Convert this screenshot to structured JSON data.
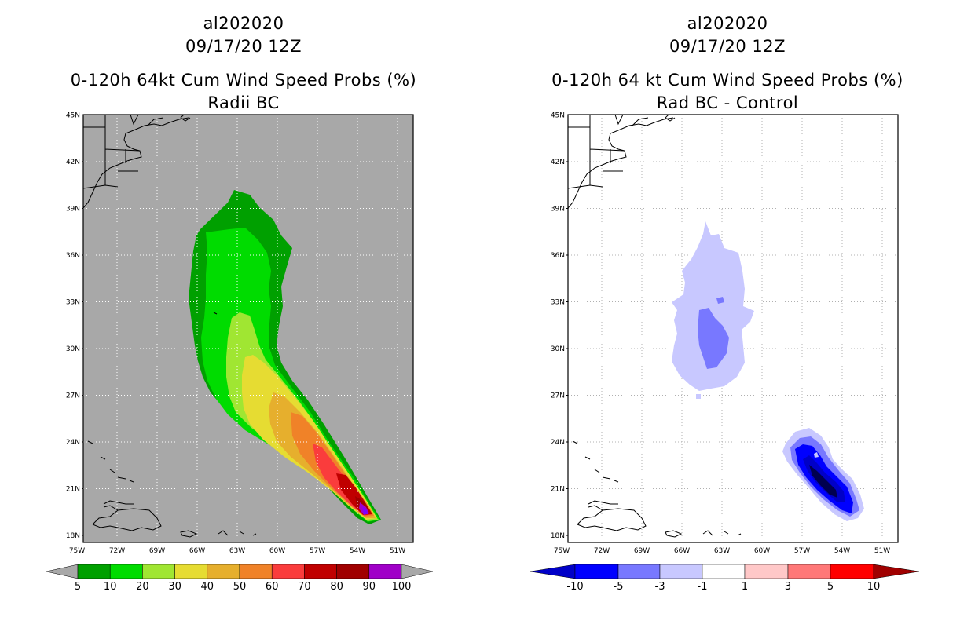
{
  "left": {
    "title_line1": "al202020",
    "title_line2": "09/17/20 12Z",
    "title_line3": "0-120h 64kt Cum Wind Speed Probs (%)",
    "title_line4": "Radii BC",
    "lat_labels": [
      "45N",
      "42N",
      "39N",
      "36N",
      "33N",
      "30N",
      "27N",
      "24N",
      "21N",
      "18N"
    ],
    "lon_labels": [
      "75W",
      "72W",
      "69W",
      "66W",
      "63W",
      "60W",
      "57W",
      "54W",
      "51W"
    ],
    "colorbar_labels": [
      "5",
      "10",
      "20",
      "30",
      "40",
      "50",
      "60",
      "70",
      "80",
      "90",
      "100"
    ],
    "colors": {
      "background": "#a8a8a8",
      "c5": "#00a000",
      "c10": "#00dc00",
      "c20": "#a0e632",
      "c30": "#e6dc32",
      "c40": "#e6af2d",
      "c50": "#f08228",
      "c60": "#fa3c3c",
      "c70": "#c00000",
      "c80": "#a00000",
      "c90": "#a000c8",
      "c100": "#8000ff"
    }
  },
  "right": {
    "title_line1": "al202020",
    "title_line2": "09/17/20 12Z",
    "title_line3": "0-120h 64 kt Cum Wind Speed Probs (%)",
    "title_line4": "Rad BC - Control",
    "lat_labels": [
      "45N",
      "42N",
      "39N",
      "36N",
      "33N",
      "30N",
      "27N",
      "24N",
      "21N",
      "18N"
    ],
    "lon_labels": [
      "75W",
      "72W",
      "69W",
      "66W",
      "63W",
      "60W",
      "57W",
      "54W",
      "51W"
    ],
    "colorbar_labels": [
      "-10",
      "-5",
      "-3",
      "-1",
      "1",
      "3",
      "5",
      "10"
    ],
    "colors": {
      "m10": "#0000c8",
      "m5": "#0000ff",
      "m3": "#7878ff",
      "m1": "#c8c8ff",
      "zero": "#ffffff",
      "p1": "#ffc8c8",
      "p3": "#ff7878",
      "p5": "#ff0000",
      "p10": "#a00000"
    }
  }
}
